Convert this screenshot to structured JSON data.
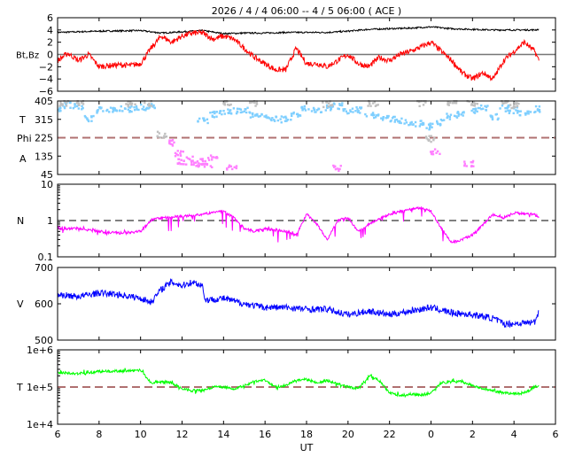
{
  "chart_data": {
    "type": "line",
    "title": "2026 /  4 /  4   06:00 -- 4 /  5   06:00 ( ACE )",
    "xlabel": "UT",
    "x_ticks": [
      "6",
      "8",
      "10",
      "12",
      "14",
      "16",
      "18",
      "20",
      "22",
      "0",
      "2",
      "4",
      "6"
    ],
    "x_range_hours": [
      0,
      24
    ],
    "panels": [
      {
        "id": "mag",
        "ylabel": "Bt,Bz",
        "scale": "linear",
        "ylim": [
          -6,
          6
        ],
        "y_ticks": [
          "6",
          "4",
          "2",
          "0",
          "−2",
          "−4",
          "−6"
        ],
        "y_tick_values": [
          6,
          4,
          2,
          0,
          -2,
          -4,
          -6
        ],
        "reference_line": 0,
        "series": [
          {
            "name": "Bt",
            "color": "#000000",
            "x": [
              0,
              2,
              4,
              4.5,
              5,
              6,
              7,
              8,
              9,
              10,
              11,
              12,
              13,
              14,
              15,
              16,
              17,
              18,
              19,
              20,
              21,
              22,
              23,
              23.2
            ],
            "y": [
              3.6,
              3.8,
              3.9,
              3.7,
              3.5,
              3.7,
              3.9,
              3.4,
              3.5,
              3.5,
              3.6,
              3.6,
              3.6,
              3.8,
              4.1,
              4.2,
              4.3,
              4.5,
              4.2,
              4.1,
              4.0,
              4.0,
              4.0,
              4.1
            ]
          },
          {
            "name": "Bz",
            "color": "#ff0000",
            "x": [
              0,
              0.5,
              1,
              1.5,
              2,
              2.5,
              3,
              3.5,
              4,
              4.5,
              5,
              5.5,
              6,
              6.5,
              7,
              7.5,
              8,
              8.5,
              9,
              9.5,
              10,
              10.5,
              11,
              11.5,
              12,
              12.5,
              13,
              13.5,
              14,
              14.5,
              15,
              15.5,
              16,
              16.5,
              17,
              17.5,
              18,
              18.5,
              19,
              19.5,
              20,
              20.5,
              21,
              21.5,
              22,
              22.5,
              23,
              23.2
            ],
            "y": [
              -1,
              0.2,
              -1,
              0,
              -2,
              -1.8,
              -1.7,
              -1.8,
              -1.5,
              1,
              3,
              2,
              3,
              3.5,
              3.5,
              2.5,
              3,
              2.5,
              1,
              -0.5,
              -1.5,
              -2.5,
              -2.5,
              1,
              -1.5,
              -1.5,
              -2,
              -1,
              0,
              -1.5,
              -2,
              -0.5,
              -1,
              0,
              0.5,
              1.2,
              2,
              0.5,
              -1,
              -3,
              -4,
              -3,
              -4,
              -1,
              0.5,
              2,
              0.5,
              -1
            ]
          }
        ]
      },
      {
        "id": "phi",
        "ylabel_lines": [
          "T",
          "Phi",
          "A"
        ],
        "scale": "linear",
        "ylim": [
          45,
          405
        ],
        "y_ticks": [
          "405",
          "315",
          "225",
          "135",
          "45"
        ],
        "y_tick_values": [
          405,
          315,
          225,
          135,
          45
        ],
        "reference_line": 225,
        "series": [
          {
            "name": "Phi toward",
            "color": "#7fcfff",
            "x": [
              0,
              0.5,
              1,
              1.5,
              2,
              2.5,
              3,
              3.5,
              4,
              4.5,
              7,
              7.5,
              8,
              8.5,
              9,
              9.5,
              10,
              10.5,
              11,
              11.5,
              12,
              12.5,
              13,
              13.5,
              14,
              14.5,
              15,
              15.5,
              16,
              16.5,
              17,
              17.5,
              18,
              18.5,
              19,
              19.5,
              20,
              20.5,
              21,
              21.5,
              22,
              22.5,
              23
            ],
            "y": [
              370,
              385,
              380,
              320,
              360,
              365,
              370,
              365,
              375,
              380,
              310,
              340,
              350,
              355,
              360,
              340,
              330,
              320,
              315,
              340,
              365,
              360,
              370,
              380,
              355,
              360,
              335,
              325,
              320,
              310,
              300,
              295,
              280,
              300,
              330,
              345,
              360,
              370,
              330,
              370,
              360,
              350,
              365
            ]
          },
          {
            "name": "Phi gray",
            "color": "#c0c0c0",
            "x": [
              0.3,
              1,
              3.5,
              4.3,
              5,
              8.2,
              9.5,
              13,
              15.2,
              17.5,
              18,
              19,
              20,
              21.5,
              22
            ],
            "y": [
              395,
              400,
              390,
              395,
              240,
              395,
              395,
              390,
              395,
              395,
              220,
              400,
              395,
              405,
              385
            ]
          },
          {
            "name": "Phi away",
            "color": "#ff80ff",
            "x": [
              5.5,
              5.8,
              6,
              6.3,
              6.6,
              6.9,
              7.2,
              7.5,
              8.4,
              13.5,
              18.2,
              19.8
            ],
            "y": [
              200,
              150,
              110,
              125,
              90,
              110,
              95,
              125,
              80,
              75,
              160,
              100
            ]
          }
        ]
      },
      {
        "id": "density",
        "ylabel": "N",
        "scale": "log",
        "ylim": [
          0.1,
          10
        ],
        "y_ticks": [
          "10",
          "1",
          "0.1"
        ],
        "y_tick_values": [
          10,
          1,
          0.1
        ],
        "reference_line": 1,
        "series": [
          {
            "name": "N",
            "color": "#ff00ff",
            "x": [
              0,
              1,
              2,
              3,
              4,
              4.5,
              5,
              6,
              7,
              8,
              8.5,
              9,
              9.5,
              10,
              11,
              11.5,
              12,
              12.5,
              13,
              13.5,
              14,
              14.5,
              15,
              16,
              17,
              17.5,
              18,
              18.5,
              19,
              19.5,
              20,
              21,
              21.5,
              22,
              23,
              23.2
            ],
            "y": [
              0.6,
              0.6,
              0.5,
              0.45,
              0.5,
              1,
              1.2,
              1.3,
              1.5,
              1.8,
              1.2,
              0.6,
              0.5,
              0.6,
              0.5,
              0.4,
              1.5,
              0.8,
              0.3,
              1,
              1.2,
              0.5,
              0.8,
              1.5,
              2,
              2.2,
              1.8,
              0.6,
              0.25,
              0.3,
              0.4,
              1.5,
              1.2,
              1.6,
              1.5,
              1.2
            ]
          }
        ]
      },
      {
        "id": "speed",
        "ylabel": "V",
        "scale": "linear",
        "ylim": [
          500,
          700
        ],
        "y_ticks": [
          "700",
          "600",
          "500"
        ],
        "y_tick_values": [
          700,
          600,
          500
        ],
        "series": [
          {
            "name": "V",
            "color": "#0000ff",
            "x": [
              0,
              1,
              2,
              3,
              4,
              4.5,
              5,
              5.5,
              6,
              6.5,
              7,
              7.1,
              8,
              9,
              10,
              11,
              12,
              13,
              14,
              15,
              16,
              17,
              18,
              19,
              20,
              21,
              21.5,
              22,
              23,
              23.2
            ],
            "y": [
              625,
              620,
              630,
              625,
              615,
              605,
              640,
              660,
              650,
              660,
              650,
              610,
              615,
              600,
              590,
              590,
              585,
              585,
              570,
              580,
              570,
              580,
              590,
              575,
              570,
              560,
              545,
              545,
              550,
              580
            ]
          }
        ]
      },
      {
        "id": "temperature",
        "ylabel": "T",
        "scale": "log",
        "ylim": [
          10000,
          1000000
        ],
        "y_ticks": [
          "1e+6",
          "1e+5",
          "1e+4"
        ],
        "y_tick_values": [
          1000000,
          100000,
          10000
        ],
        "reference_line": 100000,
        "series": [
          {
            "name": "T",
            "color": "#00ff00",
            "x": [
              0,
              1,
              2,
              3,
              4,
              4.5,
              5,
              5.5,
              6,
              6.5,
              7,
              7.5,
              8,
              8.5,
              9,
              9.5,
              10,
              10.5,
              11,
              11.5,
              12,
              12.5,
              13,
              13.5,
              14,
              14.5,
              15,
              15.5,
              16,
              16.5,
              17,
              17.5,
              18,
              18.5,
              19,
              19.5,
              20,
              20.5,
              21,
              21.5,
              22,
              22.5,
              23,
              23.2
            ],
            "y": [
              250000,
              230000,
              260000,
              270000,
              280000,
              130000,
              140000,
              130000,
              90000,
              80000,
              80000,
              100000,
              100000,
              90000,
              110000,
              140000,
              150000,
              100000,
              110000,
              150000,
              160000,
              130000,
              150000,
              120000,
              100000,
              90000,
              200000,
              150000,
              70000,
              60000,
              65000,
              60000,
              70000,
              130000,
              140000,
              140000,
              110000,
              90000,
              80000,
              70000,
              65000,
              70000,
              100000,
              110000
            ]
          }
        ]
      }
    ]
  }
}
